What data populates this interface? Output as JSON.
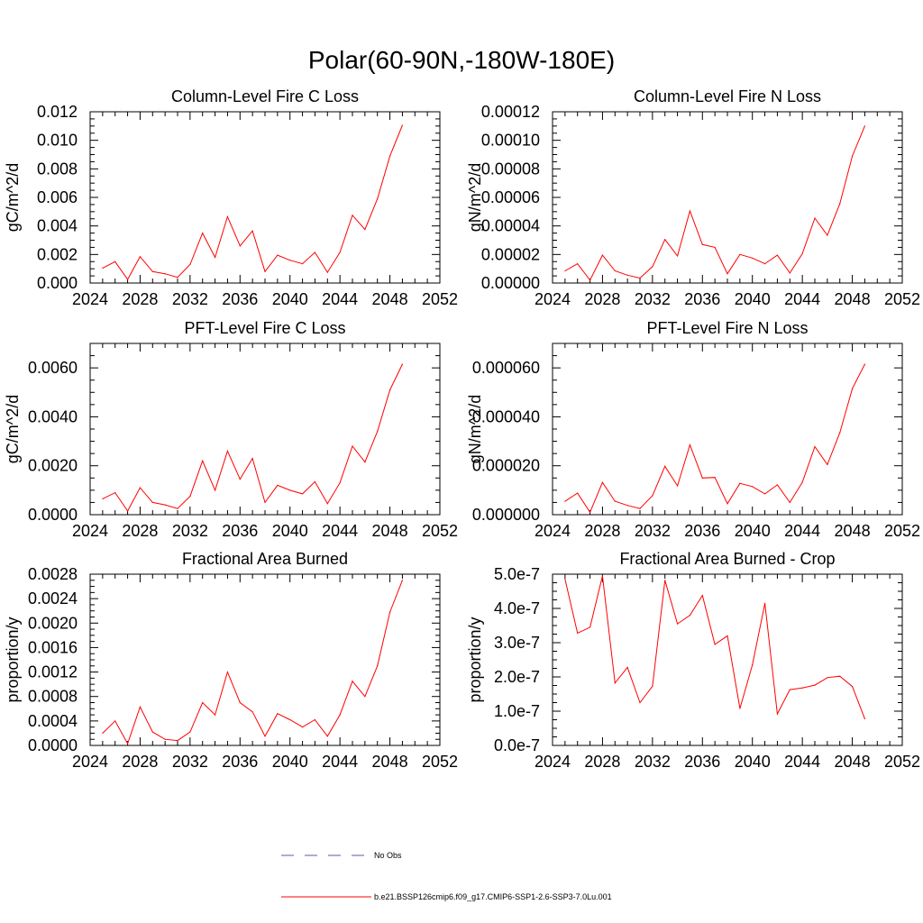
{
  "suptitle": "Polar(60-90N,-180W-180E)",
  "legend": {
    "entries": [
      {
        "label": "No Obs",
        "style": "dashed",
        "color": "#5a5aa8"
      },
      {
        "label": "b.e21.BSSP126cmip6.f09_g17.CMIP6-SSP1-2.6-SSP3-7.0Lu.001",
        "style": "solid",
        "color": "#ff0000"
      }
    ]
  },
  "chart_data": [
    {
      "type": "line",
      "title": "Column-Level Fire C Loss",
      "ylabel": "gC/m^2/d",
      "xlim": [
        2024,
        2052
      ],
      "ylim": [
        0,
        0.012
      ],
      "xticks": [
        2024,
        2028,
        2032,
        2036,
        2040,
        2044,
        2048,
        2052
      ],
      "xtick_labels": [
        "2024",
        "2028",
        "2032",
        "2036",
        "2040",
        "2044",
        "2048",
        "2052"
      ],
      "yticks": [
        0,
        0.002,
        0.004,
        0.006,
        0.008,
        0.01,
        0.012
      ],
      "ytick_labels": [
        "0.000",
        "0.002",
        "0.004",
        "0.006",
        "0.008",
        "0.010",
        "0.012"
      ],
      "x": [
        2025,
        2026,
        2027,
        2028,
        2029,
        2030,
        2031,
        2032,
        2033,
        2034,
        2035,
        2036,
        2037,
        2038,
        2039,
        2040,
        2041,
        2042,
        2043,
        2044,
        2045,
        2046,
        2047,
        2048,
        2049
      ],
      "series": [
        {
          "color": "#ff0000",
          "values": [
            0.00105,
            0.0015,
            0.00025,
            0.00185,
            0.0008,
            0.00065,
            0.0004,
            0.0013,
            0.0035,
            0.0018,
            0.00465,
            0.0026,
            0.00365,
            0.0008,
            0.00195,
            0.0016,
            0.00135,
            0.00215,
            0.00075,
            0.00215,
            0.00475,
            0.00375,
            0.0059,
            0.0089,
            0.01105
          ]
        }
      ]
    },
    {
      "type": "line",
      "title": "Column-Level Fire N Loss",
      "ylabel": "gN/m^2/d",
      "xlim": [
        2024,
        2052
      ],
      "ylim": [
        0,
        0.00012
      ],
      "xticks": [
        2024,
        2028,
        2032,
        2036,
        2040,
        2044,
        2048,
        2052
      ],
      "xtick_labels": [
        "2024",
        "2028",
        "2032",
        "2036",
        "2040",
        "2044",
        "2048",
        "2052"
      ],
      "yticks": [
        0,
        2e-05,
        4e-05,
        6e-05,
        8e-05,
        0.0001,
        0.00012
      ],
      "ytick_labels": [
        "0.00000",
        "0.00002",
        "0.00004",
        "0.00006",
        "0.00008",
        "0.00010",
        "0.00012"
      ],
      "x": [
        2025,
        2026,
        2027,
        2028,
        2029,
        2030,
        2031,
        2032,
        2033,
        2034,
        2035,
        2036,
        2037,
        2038,
        2039,
        2040,
        2041,
        2042,
        2043,
        2044,
        2045,
        2046,
        2047,
        2048,
        2049
      ],
      "series": [
        {
          "color": "#ff0000",
          "values": [
            8.5e-06,
            1.35e-05,
            2e-06,
            1.95e-05,
            8.5e-06,
            5.5e-06,
            3.5e-06,
            1.15e-05,
            3.05e-05,
            1.9e-05,
            5.05e-05,
            2.7e-05,
            2.5e-05,
            6.5e-06,
            2e-05,
            1.75e-05,
            1.35e-05,
            1.95e-05,
            7e-06,
            2.05e-05,
            4.55e-05,
            3.35e-05,
            5.55e-05,
            8.9e-05,
            0.00011
          ]
        }
      ]
    },
    {
      "type": "line",
      "title": "PFT-Level Fire C Loss",
      "ylabel": "gC/m^2/d",
      "xlim": [
        2024,
        2052
      ],
      "ylim": [
        0,
        0.007
      ],
      "xticks": [
        2024,
        2028,
        2032,
        2036,
        2040,
        2044,
        2048,
        2052
      ],
      "xtick_labels": [
        "2024",
        "2028",
        "2032",
        "2036",
        "2040",
        "2044",
        "2048",
        "2052"
      ],
      "yticks": [
        0,
        0.002,
        0.004,
        0.006
      ],
      "ytick_labels": [
        "0.0000",
        "0.0020",
        "0.0040",
        "0.0060"
      ],
      "x": [
        2025,
        2026,
        2027,
        2028,
        2029,
        2030,
        2031,
        2032,
        2033,
        2034,
        2035,
        2036,
        2037,
        2038,
        2039,
        2040,
        2041,
        2042,
        2043,
        2044,
        2045,
        2046,
        2047,
        2048,
        2049
      ],
      "series": [
        {
          "color": "#ff0000",
          "values": [
            0.00065,
            0.0009,
            0.00015,
            0.0011,
            0.0005,
            0.0004,
            0.00025,
            0.00075,
            0.0022,
            0.001,
            0.0026,
            0.00145,
            0.0023,
            0.0005,
            0.0012,
            0.001,
            0.00085,
            0.00135,
            0.00045,
            0.0013,
            0.0028,
            0.00215,
            0.0034,
            0.0051,
            0.00615
          ]
        }
      ]
    },
    {
      "type": "line",
      "title": "PFT-Level Fire N Loss",
      "ylabel": "gN/m^2/d",
      "xlim": [
        2024,
        2052
      ],
      "ylim": [
        0,
        7e-05
      ],
      "xticks": [
        2024,
        2028,
        2032,
        2036,
        2040,
        2044,
        2048,
        2052
      ],
      "xtick_labels": [
        "2024",
        "2028",
        "2032",
        "2036",
        "2040",
        "2044",
        "2048",
        "2052"
      ],
      "yticks": [
        0,
        2e-05,
        4e-05,
        6e-05
      ],
      "ytick_labels": [
        "0.000000",
        "0.000020",
        "0.000040",
        "0.000060"
      ],
      "x": [
        2025,
        2026,
        2027,
        2028,
        2029,
        2030,
        2031,
        2032,
        2033,
        2034,
        2035,
        2036,
        2037,
        2038,
        2039,
        2040,
        2041,
        2042,
        2043,
        2044,
        2045,
        2046,
        2047,
        2048,
        2049
      ],
      "series": [
        {
          "color": "#ff0000",
          "values": [
            5.5e-06,
            8.8e-06,
            1e-06,
            1.32e-05,
            5.5e-06,
            3.8e-06,
            2.5e-06,
            7.8e-06,
            1.98e-05,
            1.18e-05,
            2.85e-05,
            1.5e-05,
            1.52e-05,
            4.5e-06,
            1.28e-05,
            1.15e-05,
            8.5e-06,
            1.22e-05,
            5e-06,
            1.32e-05,
            2.78e-05,
            2.05e-05,
            3.35e-05,
            5.15e-05,
            6.15e-05
          ]
        }
      ]
    },
    {
      "type": "line",
      "title": "Fractional Area Burned",
      "ylabel": "proportion/y",
      "xlim": [
        2024,
        2052
      ],
      "ylim": [
        0,
        0.0028
      ],
      "xticks": [
        2024,
        2028,
        2032,
        2036,
        2040,
        2044,
        2048,
        2052
      ],
      "xtick_labels": [
        "2024",
        "2028",
        "2032",
        "2036",
        "2040",
        "2044",
        "2048",
        "2052"
      ],
      "yticks": [
        0,
        0.0004,
        0.0008,
        0.0012,
        0.0016,
        0.002,
        0.0024,
        0.0028
      ],
      "ytick_labels": [
        "0.0000",
        "0.0004",
        "0.0008",
        "0.0012",
        "0.0016",
        "0.0020",
        "0.0024",
        "0.0028"
      ],
      "x": [
        2025,
        2026,
        2027,
        2028,
        2029,
        2030,
        2031,
        2032,
        2033,
        2034,
        2035,
        2036,
        2037,
        2038,
        2039,
        2040,
        2041,
        2042,
        2043,
        2044,
        2045,
        2046,
        2047,
        2048,
        2049
      ],
      "series": [
        {
          "color": "#ff0000",
          "values": [
            0.0002,
            0.0004,
            3e-05,
            0.00063,
            0.00022,
            0.0001,
            8e-05,
            0.00022,
            0.0007,
            0.0005,
            0.0012,
            0.0007,
            0.00055,
            0.00015,
            0.00052,
            0.00042,
            0.0003,
            0.00042,
            0.00015,
            0.0005,
            0.00105,
            0.0008,
            0.0013,
            0.00218,
            0.0027
          ]
        }
      ]
    },
    {
      "type": "line",
      "title": "Fractional Area Burned - Crop",
      "ylabel": "proportion/y",
      "xlim": [
        2024,
        2052
      ],
      "ylim": [
        0,
        5e-07
      ],
      "xticks": [
        2024,
        2028,
        2032,
        2036,
        2040,
        2044,
        2048,
        2052
      ],
      "xtick_labels": [
        "2024",
        "2028",
        "2032",
        "2036",
        "2040",
        "2044",
        "2048",
        "2052"
      ],
      "yticks": [
        0,
        1e-07,
        2e-07,
        3e-07,
        4e-07,
        5e-07
      ],
      "ytick_labels": [
        "0.0e-7",
        "1.0e-7",
        "2.0e-7",
        "3.0e-7",
        "4.0e-7",
        "5.0e-7"
      ],
      "x": [
        2025,
        2026,
        2027,
        2028,
        2029,
        2030,
        2031,
        2032,
        2033,
        2034,
        2035,
        2036,
        2037,
        2038,
        2039,
        2040,
        2041,
        2042,
        2043,
        2044,
        2045,
        2046,
        2047,
        2048,
        2049
      ],
      "series": [
        {
          "color": "#ff0000",
          "values": [
            4.85e-07,
            3.28e-07,
            3.45e-07,
            4.95e-07,
            1.82e-07,
            2.28e-07,
            1.25e-07,
            1.73e-07,
            4.82e-07,
            3.55e-07,
            3.8e-07,
            4.38e-07,
            2.95e-07,
            3.2e-07,
            1.08e-07,
            2.35e-07,
            4.15e-07,
            9.2e-08,
            1.63e-07,
            1.68e-07,
            1.76e-07,
            1.98e-07,
            2.02e-07,
            1.72e-07,
            7.8e-08
          ]
        }
      ]
    }
  ]
}
